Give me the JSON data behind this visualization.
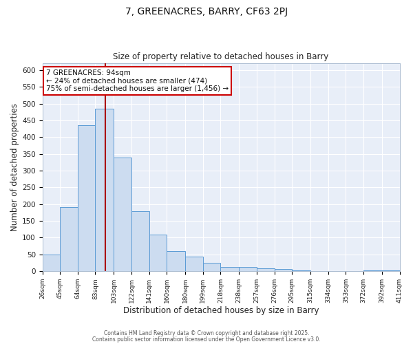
{
  "title": "7, GREENACRES, BARRY, CF63 2PJ",
  "subtitle": "Size of property relative to detached houses in Barry",
  "xlabel": "Distribution of detached houses by size in Barry",
  "ylabel": "Number of detached properties",
  "categories": [
    "26sqm",
    "45sqm",
    "64sqm",
    "83sqm",
    "103sqm",
    "122sqm",
    "141sqm",
    "160sqm",
    "180sqm",
    "199sqm",
    "218sqm",
    "238sqm",
    "257sqm",
    "276sqm",
    "295sqm",
    "315sqm",
    "334sqm",
    "353sqm",
    "372sqm",
    "392sqm",
    "411sqm"
  ],
  "all_edges": [
    26,
    45,
    64,
    83,
    103,
    122,
    141,
    160,
    180,
    199,
    218,
    238,
    257,
    276,
    295,
    315,
    334,
    353,
    372,
    392,
    411
  ],
  "heights": [
    50,
    192,
    435,
    485,
    340,
    178,
    110,
    60,
    44,
    25,
    12,
    12,
    8,
    6,
    3,
    0,
    0,
    0,
    3,
    3
  ],
  "bar_color": "#ccdcf0",
  "bar_edge_color": "#5b9bd5",
  "vline_x": 94,
  "vline_color": "#aa0000",
  "ylim": [
    0,
    620
  ],
  "yticks": [
    0,
    50,
    100,
    150,
    200,
    250,
    300,
    350,
    400,
    450,
    500,
    550,
    600
  ],
  "annotation_title": "7 GREENACRES: 94sqm",
  "annotation_line1": "← 24% of detached houses are smaller (474)",
  "annotation_line2": "75% of semi-detached houses are larger (1,456) →",
  "annotation_box_color": "#ffffff",
  "annotation_box_edge": "#cc0000",
  "plot_bg_color": "#e8eef8",
  "fig_bg_color": "#ffffff",
  "grid_color": "#ffffff",
  "footer1": "Contains HM Land Registry data © Crown copyright and database right 2025.",
  "footer2": "Contains public sector information licensed under the Open Government Licence v3.0."
}
